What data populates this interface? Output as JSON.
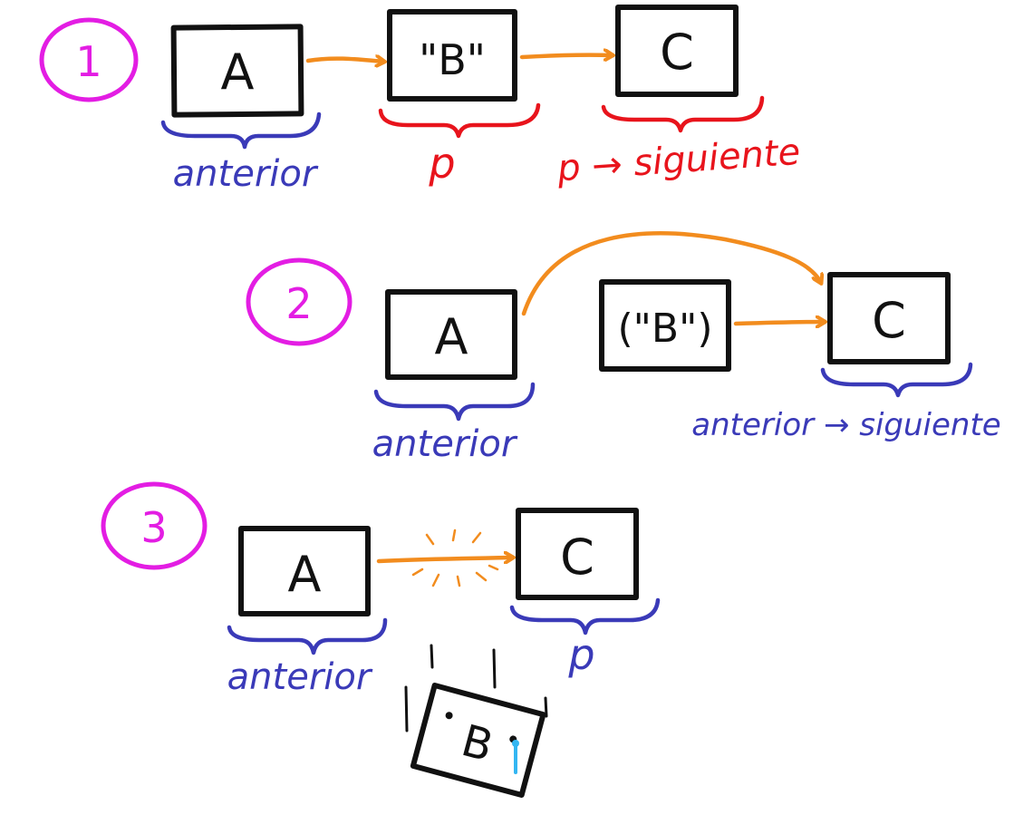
{
  "colors": {
    "magenta": "#e31de3",
    "orange": "#f28c1e",
    "blue": "#3a3ab8",
    "red": "#e8141c",
    "black": "#111111",
    "tear": "#33b6f2"
  },
  "steps": [
    {
      "number": "1",
      "boxes": [
        "A",
        "\"B\"",
        "C"
      ],
      "labels": [
        "anterior",
        "p",
        "p → siguiente"
      ]
    },
    {
      "number": "2",
      "boxes": [
        "A",
        "(\"B\")",
        "C"
      ],
      "labels": [
        "anterior",
        "anterior → siguiente"
      ]
    },
    {
      "number": "3",
      "boxes": [
        "A",
        "C",
        "B"
      ],
      "labels": [
        "anterior",
        "p"
      ]
    }
  ]
}
